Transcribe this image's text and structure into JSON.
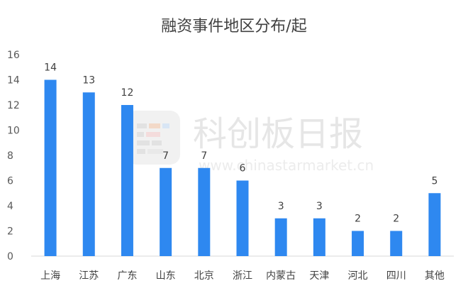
{
  "watermark": {
    "brand": "科创板日报",
    "url": "www.chinastarmarket.cn"
  },
  "chart_data": {
    "type": "bar",
    "title": "融资事件地区分布/起",
    "xlabel": "",
    "ylabel": "",
    "categories": [
      "上海",
      "江苏",
      "广东",
      "山东",
      "北京",
      "浙江",
      "内蒙古",
      "天津",
      "河北",
      "四川",
      "其他"
    ],
    "values": [
      14,
      13,
      12,
      7,
      7,
      6,
      3,
      3,
      2,
      2,
      5
    ],
    "ylim": [
      0,
      16
    ],
    "yticks": [
      0,
      2,
      4,
      6,
      8,
      10,
      12,
      14,
      16
    ],
    "bar_color": "#2e88f0",
    "grid": false,
    "legend": "none",
    "data_labels": true
  }
}
